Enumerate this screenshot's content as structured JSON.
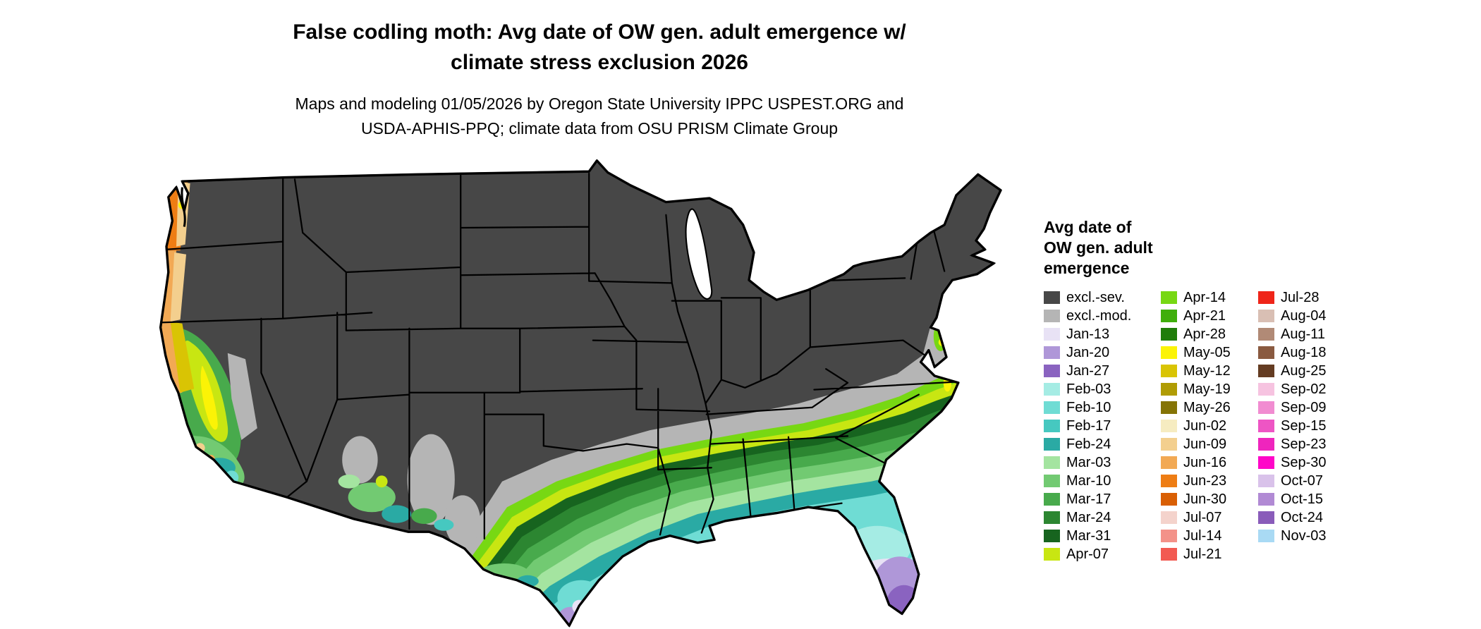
{
  "header": {
    "title_line1": "False codling moth: Avg date of OW gen. adult emergence w/",
    "title_line2": "climate stress exclusion 2026",
    "subtitle_line1": "Maps and modeling 01/05/2026 by Oregon State University IPPC USPEST.ORG and",
    "subtitle_line2": "USDA-APHIS-PPQ; climate data from OSU PRISM Climate Group"
  },
  "legend": {
    "title_lines": [
      "Avg date of",
      "OW gen. adult",
      "emergence"
    ],
    "columns": [
      [
        {
          "label": "excl.-sev.",
          "color": "#474747"
        },
        {
          "label": "excl.-mod.",
          "color": "#b5b5b5"
        },
        {
          "label": "Jan-13",
          "color": "#e8e2f5"
        },
        {
          "label": "Jan-20",
          "color": "#af97d8"
        },
        {
          "label": "Jan-27",
          "color": "#8a63c0"
        },
        {
          "label": "Feb-03",
          "color": "#a5ece4"
        },
        {
          "label": "Feb-10",
          "color": "#6fdcd4"
        },
        {
          "label": "Feb-17",
          "color": "#46c8c0"
        },
        {
          "label": "Feb-24",
          "color": "#2aaaa4"
        },
        {
          "label": "Mar-03",
          "color": "#a4e4a0"
        },
        {
          "label": "Mar-10",
          "color": "#72ca72"
        },
        {
          "label": "Mar-17",
          "color": "#48aa4c"
        },
        {
          "label": "Mar-24",
          "color": "#2c8631"
        },
        {
          "label": "Mar-31",
          "color": "#17641f"
        },
        {
          "label": "Apr-07",
          "color": "#c8e612"
        }
      ],
      [
        {
          "label": "Apr-14",
          "color": "#77d813"
        },
        {
          "label": "Apr-21",
          "color": "#3fae0c"
        },
        {
          "label": "Apr-28",
          "color": "#1f7d0a"
        },
        {
          "label": "May-05",
          "color": "#fbf306"
        },
        {
          "label": "May-12",
          "color": "#d9c404"
        },
        {
          "label": "May-19",
          "color": "#b09c04"
        },
        {
          "label": "May-26",
          "color": "#857406"
        },
        {
          "label": "Jun-02",
          "color": "#f6ecc1"
        },
        {
          "label": "Jun-09",
          "color": "#f3cf8e"
        },
        {
          "label": "Jun-16",
          "color": "#f2a954"
        },
        {
          "label": "Jun-23",
          "color": "#ee7d14"
        },
        {
          "label": "Jun-30",
          "color": "#d95f04"
        },
        {
          "label": "Jul-07",
          "color": "#f4d3cc"
        },
        {
          "label": "Jul-14",
          "color": "#f39289"
        },
        {
          "label": "Jul-21",
          "color": "#f25a52"
        }
      ],
      [
        {
          "label": "Jul-28",
          "color": "#ef2519"
        },
        {
          "label": "Aug-04",
          "color": "#d9bfb4"
        },
        {
          "label": "Aug-11",
          "color": "#b18a76"
        },
        {
          "label": "Aug-18",
          "color": "#8a5a40"
        },
        {
          "label": "Aug-25",
          "color": "#643c22"
        },
        {
          "label": "Sep-02",
          "color": "#f6c3e0"
        },
        {
          "label": "Sep-09",
          "color": "#f18cd1"
        },
        {
          "label": "Sep-15",
          "color": "#ee55c4"
        },
        {
          "label": "Sep-23",
          "color": "#ef25bd"
        },
        {
          "label": "Sep-30",
          "color": "#ff06c8"
        },
        {
          "label": "Oct-07",
          "color": "#d9c2ea"
        },
        {
          "label": "Oct-15",
          "color": "#b18ad4"
        },
        {
          "label": "Oct-24",
          "color": "#8a5cba"
        },
        {
          "label": "Nov-03",
          "color": "#a9daf4"
        }
      ]
    ]
  }
}
